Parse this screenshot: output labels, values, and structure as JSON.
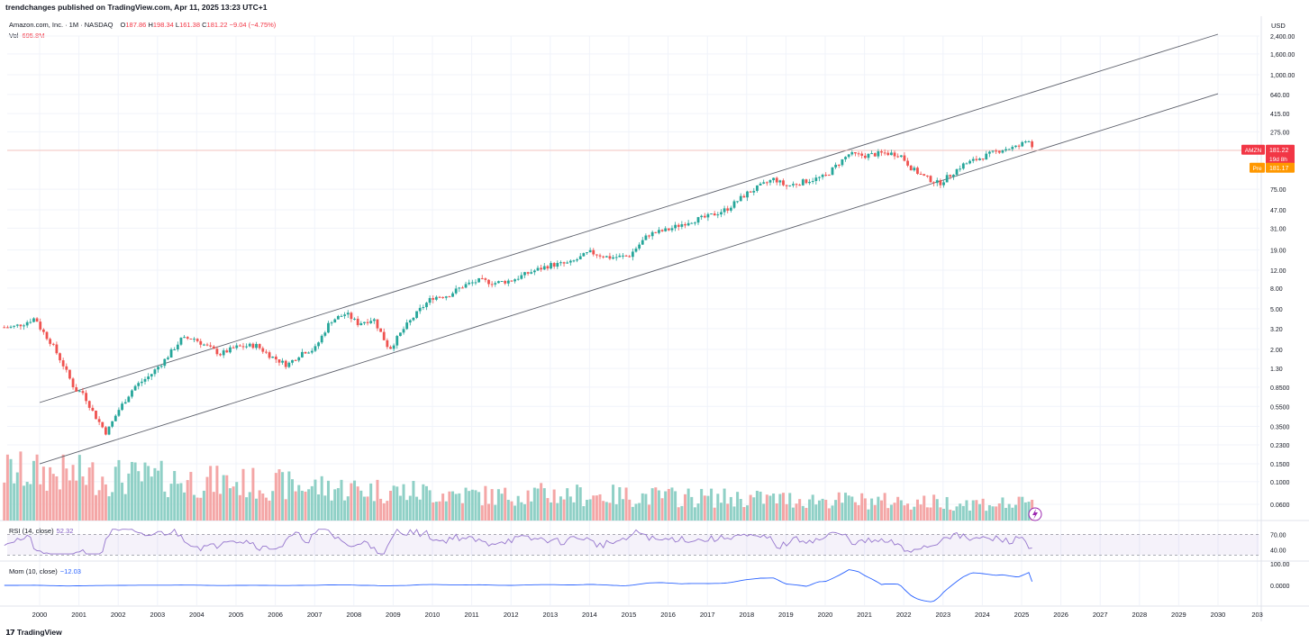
{
  "header": {
    "published": "trendchanges published on TradingView.com, Apr 11, 2025 13:23 UTC+1",
    "symbol": "Amazon.com, Inc. · 1M · NASDAQ",
    "open_label": "O",
    "open": "187.86",
    "high_label": "H",
    "high": "198.34",
    "low_label": "L",
    "low": "161.38",
    "close_label": "C",
    "close": "181.22",
    "change": "−9.04 (−4.75%)",
    "vol_label": "Vol",
    "vol": "695.8M"
  },
  "currency": "USD",
  "badges": {
    "symbol": "AMZN",
    "price": "181.22",
    "countdown": "19d 8h",
    "pre_label": "Pre",
    "pre_price": "181.17"
  },
  "rsi": {
    "label": "RSI (14, close)",
    "value": "52.32",
    "axis": [
      "70.00",
      "40.00"
    ]
  },
  "mom": {
    "label": "Mom (10, close)",
    "value": "−12.03",
    "axis": [
      "100.00",
      "0.0000"
    ]
  },
  "footer": {
    "brand": "TradingView"
  },
  "colors": {
    "up": "#26a69a",
    "down": "#ef5350",
    "vol_up": "#8fd0c6",
    "vol_down": "#f4a6a6",
    "rsi": "#9575cd",
    "mom": "#2962ff",
    "badge": "#f23645",
    "pre": "#ff9800",
    "last_line": "#f7b6ad"
  },
  "chart_data": {
    "type": "candlestick",
    "title": "Amazon.com, Inc. · 1M · NASDAQ",
    "yscale": "log",
    "y_ticks": [
      "2,400.00",
      "1,600.00",
      "1,000.00",
      "640.00",
      "415.00",
      "275.00",
      "181.22",
      "75.00",
      "47.00",
      "31.00",
      "19.00",
      "12.00",
      "8.00",
      "5.00",
      "3.20",
      "2.00",
      "1.30",
      "0.8500",
      "0.5500",
      "0.3500",
      "0.2300",
      "0.1500",
      "0.1000",
      "0.0600"
    ],
    "x_ticks": [
      "2000",
      "2001",
      "2002",
      "2003",
      "2004",
      "2005",
      "2006",
      "2007",
      "2008",
      "2009",
      "2010",
      "2011",
      "2012",
      "2013",
      "2014",
      "2015",
      "2016",
      "2017",
      "2018",
      "2019",
      "2020",
      "2021",
      "2022",
      "2023",
      "2024",
      "2025",
      "2026",
      "2027",
      "2028",
      "2029",
      "2030",
      "203"
    ],
    "price_series": {
      "name": "AMZN",
      "x": [
        1999.3,
        1999.6,
        1999.9,
        2000.0,
        2000.3,
        2000.6,
        2000.9,
        2001.1,
        2001.4,
        2001.7,
        2002.0,
        2002.4,
        2002.8,
        2003.2,
        2003.6,
        2003.9,
        2004.2,
        2004.6,
        2005.0,
        2005.5,
        2005.9,
        2006.3,
        2006.7,
        2007.0,
        2007.4,
        2007.8,
        2008.1,
        2008.5,
        2008.9,
        2009.3,
        2009.7,
        2010.0,
        2010.4,
        2010.8,
        2011.2,
        2011.6,
        2012.0,
        2012.5,
        2013.0,
        2013.5,
        2014.0,
        2014.5,
        2015.0,
        2015.5,
        2016.0,
        2016.5,
        2017.0,
        2017.5,
        2018.0,
        2018.7,
        2019.0,
        2019.5,
        2020.0,
        2020.3,
        2020.6,
        2021.0,
        2021.5,
        2021.9,
        2022.2,
        2022.5,
        2022.9,
        2023.2,
        2023.5,
        2024.0,
        2024.5,
        2024.9,
        2025.2,
        2025.3
      ],
      "close": [
        3.3,
        3.6,
        4.1,
        3.3,
        2.3,
        1.4,
        0.8,
        0.75,
        0.45,
        0.3,
        0.5,
        0.85,
        1.1,
        1.6,
        2.5,
        2.6,
        2.2,
        1.8,
        2.1,
        2.2,
        1.7,
        1.4,
        1.9,
        2.0,
        3.8,
        4.5,
        3.6,
        4.0,
        2.0,
        3.3,
        5.0,
        6.5,
        6.8,
        8.5,
        9.5,
        9.0,
        9.5,
        11.5,
        13.5,
        14.0,
        18.0,
        16.0,
        16.5,
        27.0,
        30.0,
        36.0,
        40.0,
        48.0,
        68.0,
        95.0,
        80.0,
        90.0,
        100.0,
        130.0,
        165.0,
        160.0,
        170.0,
        165.0,
        120.0,
        100.0,
        85.0,
        105.0,
        130.0,
        155.0,
        185.0,
        195.0,
        235.0,
        181.22
      ]
    },
    "channel": [
      {
        "name": "upper",
        "x": [
          2000.0,
          2030.0
        ],
        "y": [
          0.6,
          2500
        ]
      },
      {
        "name": "lower",
        "x": [
          2000.0,
          2030.0
        ],
        "y": [
          0.15,
          650
        ]
      }
    ],
    "volume_series": {
      "name": "Vol",
      "last": "695.8M"
    },
    "rsi_series": {
      "name": "RSI (14, close)",
      "last": 52.32
    },
    "mom_series": {
      "name": "Mom (10, close)",
      "last": -12.03
    }
  }
}
